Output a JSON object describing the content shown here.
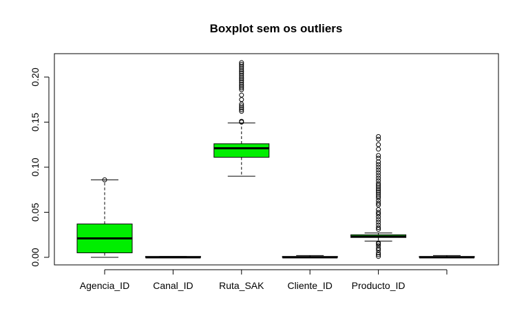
{
  "chart_data": {
    "type": "boxplot",
    "title": "Boxplot sem os outliers",
    "xlabel": "",
    "ylabel": "",
    "ylim": [
      -0.008,
      0.224
    ],
    "y_ticks": [
      0.0,
      0.05,
      0.1,
      0.15,
      0.2
    ],
    "y_tick_labels": [
      "0.00",
      "0.05",
      "0.10",
      "0.15",
      "0.20"
    ],
    "categories": [
      "Agencia_ID",
      "Canal_ID",
      "Ruta_SAK",
      "Cliente_ID",
      "Producto_ID",
      ""
    ],
    "box_color": "#00ee00",
    "boxes": [
      {
        "name": "Agencia_ID",
        "min": 0.0,
        "q1": 0.005,
        "median": 0.021,
        "q3": 0.037,
        "max": 0.086,
        "outliers": [
          0.086
        ]
      },
      {
        "name": "Canal_ID",
        "min": 0.0,
        "q1": 0.0,
        "median": 0.0,
        "q3": 0.001,
        "max": 0.001,
        "outliers": []
      },
      {
        "name": "Ruta_SAK",
        "min": 0.09,
        "q1": 0.111,
        "median": 0.121,
        "q3": 0.126,
        "max": 0.149,
        "outliers": [
          0.15,
          0.151,
          0.162,
          0.164,
          0.166,
          0.168,
          0.17,
          0.175,
          0.18,
          0.186,
          0.188,
          0.19,
          0.192,
          0.194,
          0.196,
          0.198,
          0.2,
          0.202,
          0.204,
          0.206,
          0.208,
          0.21,
          0.212,
          0.214,
          0.216
        ]
      },
      {
        "name": "Cliente_ID",
        "min": 0.0,
        "q1": 0.0,
        "median": 0.0,
        "q3": 0.001,
        "max": 0.002,
        "outliers": []
      },
      {
        "name": "Producto_ID",
        "min": 0.018,
        "q1": 0.022,
        "median": 0.023,
        "q3": 0.025,
        "max": 0.027,
        "outliers": [
          0.001,
          0.003,
          0.005,
          0.008,
          0.01,
          0.013,
          0.015,
          0.016,
          0.031,
          0.033,
          0.036,
          0.039,
          0.042,
          0.045,
          0.048,
          0.05,
          0.053,
          0.058,
          0.06,
          0.063,
          0.066,
          0.068,
          0.07,
          0.072,
          0.074,
          0.076,
          0.078,
          0.08,
          0.082,
          0.085,
          0.088,
          0.091,
          0.094,
          0.097,
          0.1,
          0.103,
          0.106,
          0.11,
          0.113,
          0.12,
          0.125,
          0.131,
          0.134
        ]
      },
      {
        "name": "",
        "min": 0.0,
        "q1": 0.0,
        "median": 0.0,
        "q3": 0.001,
        "max": 0.002,
        "outliers": []
      }
    ]
  }
}
